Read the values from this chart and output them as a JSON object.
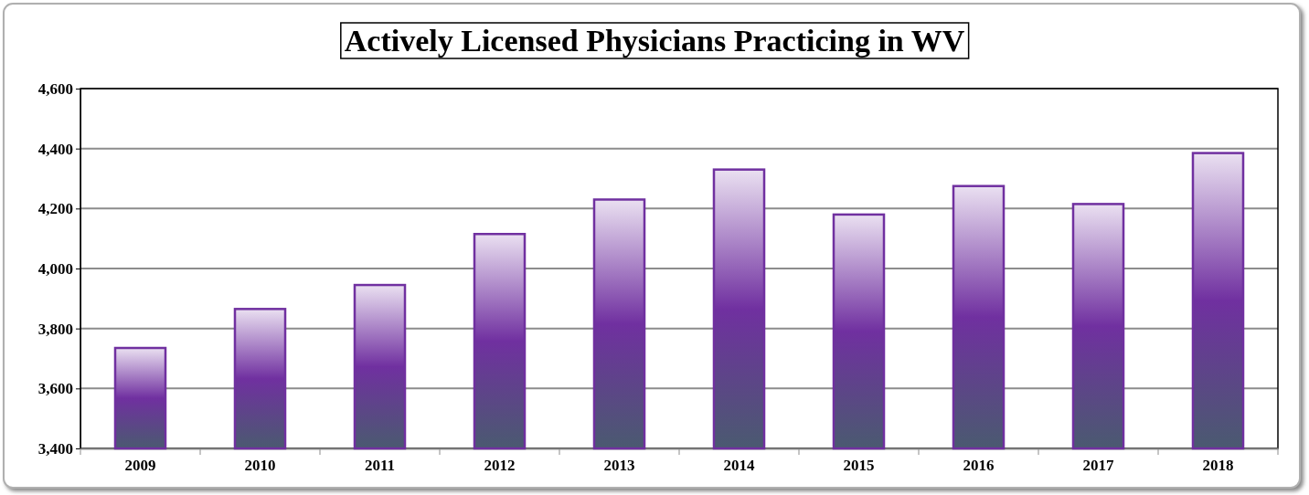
{
  "chart_data": {
    "type": "bar",
    "title": "Actively Licensed Physicians Practicing in WV",
    "categories": [
      "2009",
      "2010",
      "2011",
      "2012",
      "2013",
      "2014",
      "2015",
      "2016",
      "2017",
      "2018"
    ],
    "values": [
      3735,
      3865,
      3945,
      4115,
      4230,
      4330,
      4180,
      4275,
      4215,
      4385
    ],
    "color": "#7030a0",
    "ylim": [
      3400,
      4600
    ],
    "yticks": [
      {
        "value": 3400,
        "label": "3,400"
      },
      {
        "value": 3600,
        "label": "3,600"
      },
      {
        "value": 3800,
        "label": "3,800"
      },
      {
        "value": 4000,
        "label": "4,000"
      },
      {
        "value": 4200,
        "label": "4,200"
      },
      {
        "value": 4400,
        "label": "4,400"
      },
      {
        "value": 4600,
        "label": "4,600"
      }
    ],
    "grid": "y"
  }
}
